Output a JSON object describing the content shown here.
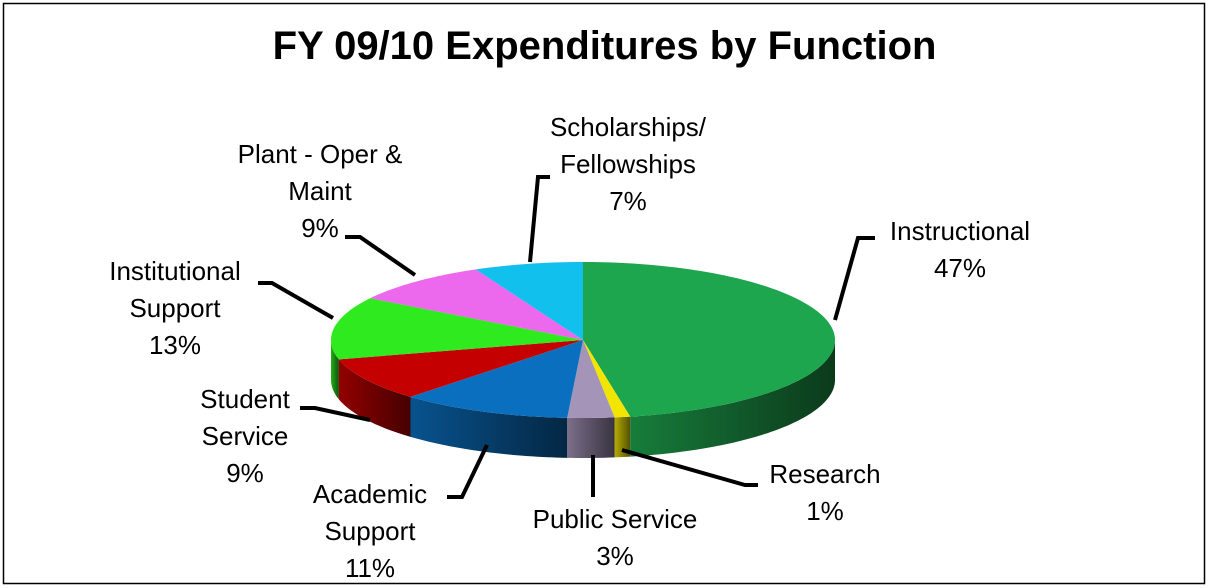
{
  "chart_data": {
    "type": "pie3d",
    "title": "FY 09/10 Expenditures by Function",
    "categories": [
      "Instructional",
      "Research",
      "Public Service",
      "Academic Support",
      "Student Service",
      "Institutional Support",
      "Plant - Oper & Maint",
      "Scholarships/ Fellowships"
    ],
    "values": [
      47,
      1,
      3,
      11,
      9,
      13,
      9,
      7
    ],
    "value_labels": [
      "47%",
      "1%",
      "3%",
      "11%",
      "9%",
      "13%",
      "9%",
      "7%"
    ],
    "colors": [
      "#1ea64e",
      "#f2e600",
      "#a494b8",
      "#0a6fbf",
      "#c40000",
      "#2eea1e",
      "#ec68ec",
      "#12c0ee"
    ]
  }
}
